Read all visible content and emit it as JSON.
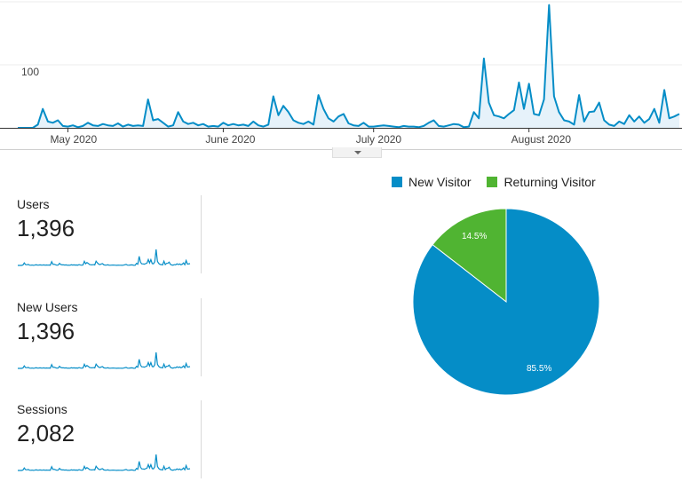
{
  "chart_data": [
    {
      "type": "area",
      "x_ticks": [
        "May 2020",
        "June 2020",
        "July 2020",
        "August 2020"
      ],
      "y_ticks": [
        100
      ],
      "ylim": [
        0,
        200
      ],
      "grid": true,
      "values": [
        0,
        0,
        0,
        0,
        5,
        30,
        10,
        8,
        12,
        3,
        2,
        4,
        1,
        3,
        8,
        4,
        3,
        6,
        4,
        3,
        7,
        2,
        5,
        3,
        4,
        3,
        45,
        12,
        14,
        8,
        2,
        4,
        25,
        10,
        6,
        8,
        4,
        6,
        2,
        3,
        2,
        8,
        4,
        6,
        4,
        5,
        3,
        10,
        4,
        2,
        5,
        50,
        20,
        35,
        25,
        12,
        8,
        6,
        10,
        5,
        52,
        30,
        15,
        10,
        18,
        22,
        7,
        4,
        3,
        8,
        2,
        2,
        3,
        4,
        3,
        2,
        1,
        3,
        2,
        2,
        1,
        3,
        8,
        12,
        3,
        2,
        4,
        6,
        5,
        1,
        2,
        25,
        15,
        110,
        40,
        20,
        18,
        15,
        22,
        28,
        72,
        30,
        70,
        22,
        20,
        45,
        195,
        50,
        25,
        12,
        10,
        5,
        52,
        10,
        25,
        26,
        40,
        12,
        5,
        3,
        10,
        6,
        20,
        10,
        18,
        8,
        14,
        30,
        8,
        60,
        15,
        18,
        22
      ]
    },
    {
      "type": "pie",
      "legend_position": "top",
      "series": [
        {
          "name": "New Visitor",
          "value": 85.5,
          "label": "85.5%",
          "color": "#058dc7"
        },
        {
          "name": "Returning Visitor",
          "value": 14.5,
          "label": "14.5%",
          "color": "#50b432"
        }
      ]
    }
  ],
  "timeline": {
    "line_color": "#058dc7",
    "fill_color": "#e6f2fa"
  },
  "metrics": [
    {
      "label": "Users",
      "value": "1,396"
    },
    {
      "label": "New Users",
      "value": "1,396"
    },
    {
      "label": "Sessions",
      "value": "2,082"
    }
  ]
}
